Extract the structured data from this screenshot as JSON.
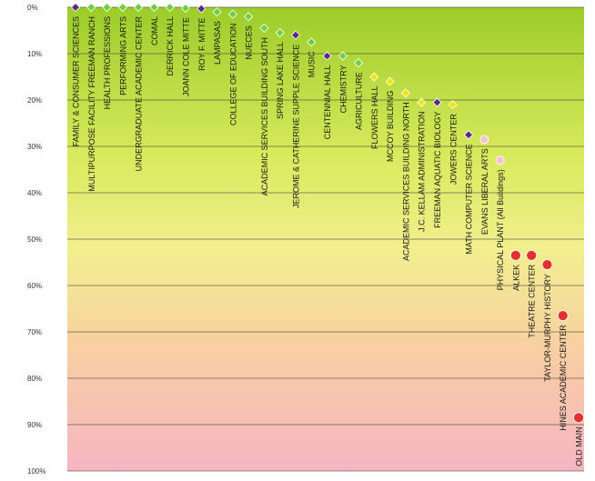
{
  "chart_data": {
    "type": "scatter",
    "title": "",
    "xlabel": "",
    "ylabel": "",
    "ylim": [
      0,
      100
    ],
    "y_axis_reversed": true,
    "y_ticks": [
      "0%",
      "10%",
      "20%",
      "30%",
      "40%",
      "50%",
      "60%",
      "70%",
      "80%",
      "90%",
      "100%"
    ],
    "grid": "horizontal",
    "background": "vertical gradient green (top) to yellow to pink (bottom)",
    "colors": {
      "green": "#6fcf3f",
      "purple": "#5b2a86",
      "yellow": "#f2e600",
      "light_pink": "#f3c3d6",
      "red": "#e03030",
      "gradient_top": "#9ccc2a",
      "gradient_mid": "#f2ef8e",
      "gradient_bottom": "#f6b6c2"
    },
    "points": [
      {
        "label": "FAMILY & CONSUMER SCIENCES",
        "value": 0,
        "color": "purple"
      },
      {
        "label": "MULTIPURPOSE FACILITY FREEMAN RANCH",
        "value": 0,
        "color": "green"
      },
      {
        "label": "HEALTH PROFESSIONS",
        "value": 0,
        "color": "green"
      },
      {
        "label": "PERFORMING ARTS",
        "value": 0,
        "color": "green"
      },
      {
        "label": "UNDERGRADUATE ACADEMIC CENTER",
        "value": 0,
        "color": "green"
      },
      {
        "label": "COMAL",
        "value": 0,
        "color": "green"
      },
      {
        "label": "DERRICK HALL",
        "value": 0,
        "color": "green"
      },
      {
        "label": "JOANN COLE MITTE",
        "value": 0.2,
        "color": "green"
      },
      {
        "label": "ROY F. MITTE",
        "value": 0.3,
        "color": "purple"
      },
      {
        "label": "LAMPASAS",
        "value": 1,
        "color": "green"
      },
      {
        "label": "COLLEGE OF EDUCATION",
        "value": 1.5,
        "color": "green"
      },
      {
        "label": "NUECES",
        "value": 2,
        "color": "green"
      },
      {
        "label": "ACADEMIC SERVICES BUILDING SOUTH",
        "value": 4.5,
        "color": "green"
      },
      {
        "label": "SPRING LAKE HALL",
        "value": 5.5,
        "color": "green"
      },
      {
        "label": "JEROME & CATHERINE SUPPLE SCIENCE",
        "value": 6,
        "color": "purple"
      },
      {
        "label": "MUSIC",
        "value": 7.5,
        "color": "green"
      },
      {
        "label": "CENTENNIAL HALL",
        "value": 10.5,
        "color": "purple"
      },
      {
        "label": "CHEMISTRY",
        "value": 10.5,
        "color": "green"
      },
      {
        "label": "AGRICULTURE",
        "value": 12,
        "color": "green"
      },
      {
        "label": "FLOWERS HALL",
        "value": 15,
        "color": "yellow"
      },
      {
        "label": "MCCOY BUILDING",
        "value": 16,
        "color": "yellow"
      },
      {
        "label": "ACADEMIC SERVICES BUILDING NORTH",
        "value": 18.5,
        "color": "yellow"
      },
      {
        "label": "J.C. KELLAM ADMINISTRATION",
        "value": 20.5,
        "color": "yellow"
      },
      {
        "label": "FREEMAN AQUATIC BIOLOGY",
        "value": 20.5,
        "color": "purple"
      },
      {
        "label": "JOWERS CENTER",
        "value": 21,
        "color": "yellow"
      },
      {
        "label": "MATH COMPUTER SCIENCE",
        "value": 27.5,
        "color": "purple"
      },
      {
        "label": "EVANS LIBERAL ARTS",
        "value": 28.5,
        "color": "light_pink"
      },
      {
        "label": "PHYSICAL PLANT (All Buildings)",
        "value": 33,
        "color": "light_pink"
      },
      {
        "label": "ALKEK",
        "value": 53.5,
        "color": "red"
      },
      {
        "label": "THEATRE CENTER",
        "value": 53.5,
        "color": "red"
      },
      {
        "label": "TAYLOR-MURPHY HISTORY",
        "value": 55.5,
        "color": "red"
      },
      {
        "label": "HINES ACADEMIC CENTER",
        "value": 66.5,
        "color": "red"
      },
      {
        "label": "OLD MAIN",
        "value": 88.5,
        "color": "red"
      }
    ]
  }
}
